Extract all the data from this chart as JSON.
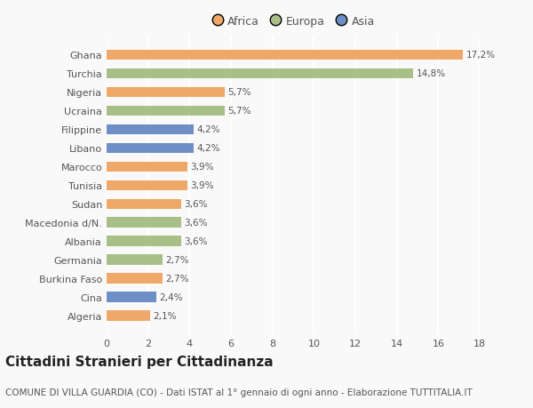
{
  "categories": [
    "Algeria",
    "Cina",
    "Burkina Faso",
    "Germania",
    "Albania",
    "Macedonia d/N.",
    "Sudan",
    "Tunisia",
    "Marocco",
    "Libano",
    "Filippine",
    "Ucraina",
    "Nigeria",
    "Turchia",
    "Ghana"
  ],
  "values": [
    2.1,
    2.4,
    2.7,
    2.7,
    3.6,
    3.6,
    3.6,
    3.9,
    3.9,
    4.2,
    4.2,
    5.7,
    5.7,
    14.8,
    17.2
  ],
  "labels": [
    "2,1%",
    "2,4%",
    "2,7%",
    "2,7%",
    "3,6%",
    "3,6%",
    "3,6%",
    "3,9%",
    "3,9%",
    "4,2%",
    "4,2%",
    "5,7%",
    "5,7%",
    "14,8%",
    "17,2%"
  ],
  "colors": [
    "#f0a868",
    "#6e8ec6",
    "#f0a868",
    "#a8bf88",
    "#a8bf88",
    "#a8bf88",
    "#f0a868",
    "#f0a868",
    "#f0a868",
    "#6e8ec6",
    "#6e8ec6",
    "#a8bf88",
    "#f0a868",
    "#a8bf88",
    "#f0a868"
  ],
  "legend_labels": [
    "Africa",
    "Europa",
    "Asia"
  ],
  "legend_colors": [
    "#f0a868",
    "#a8bf88",
    "#6e8ec6"
  ],
  "title": "Cittadini Stranieri per Cittadinanza",
  "subtitle": "COMUNE DI VILLA GUARDIA (CO) - Dati ISTAT al 1° gennaio di ogni anno - Elaborazione TUTTITALIA.IT",
  "xlim": [
    0,
    18
  ],
  "xticks": [
    0,
    2,
    4,
    6,
    8,
    10,
    12,
    14,
    16,
    18
  ],
  "background_color": "#f9f9f9",
  "bar_height": 0.55,
  "title_fontsize": 11,
  "subtitle_fontsize": 7.5,
  "label_fontsize": 7.5,
  "tick_fontsize": 8,
  "legend_fontsize": 9
}
